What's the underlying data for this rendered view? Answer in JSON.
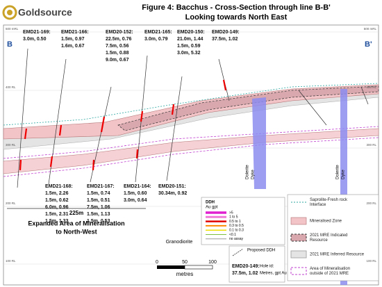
{
  "header": {
    "logo": "Goldsource",
    "title": "Figure 4: Bacchus - Cross-Section through line B-B'",
    "subtitle": "Looking towards North East"
  },
  "section": {
    "left_end": "B",
    "right_end": "B'"
  },
  "elevations_left": [
    "500 mRL",
    "400 RL",
    "300 RL",
    "200 RL",
    "100 RL"
  ],
  "elevations_right": [
    "500 mRL",
    "400 RL",
    "300 RL",
    "200 RL",
    "100 RL"
  ],
  "holes_top": [
    {
      "id": "EMD21-169:",
      "intercepts": [
        "3.0m, 0.50"
      ]
    },
    {
      "id": "EMD21-166:",
      "intercepts": [
        "1.5m, 0.97",
        "1.6m, 0.67"
      ]
    },
    {
      "id": "EMD20-152:",
      "intercepts": [
        "22.5m, 0.76",
        "7.5m, 0.56",
        "1.5m, 0.88",
        "9.0m, 0.67"
      ]
    },
    {
      "id": "EMD21-165:",
      "intercepts": [
        "3.0m, 0.79"
      ]
    },
    {
      "id": "EMD20-150:",
      "intercepts": [
        "21.0m, 1.44",
        "1.5m, 0.59",
        "3.0m, 5.32"
      ]
    },
    {
      "id": "EMD20-149:",
      "intercepts": [
        "37.5m, 1.02"
      ]
    }
  ],
  "holes_bottom": [
    {
      "id": "EMD21-168:",
      "intercepts": [
        "1.5m, 2.26",
        "1.5m, 0.62",
        "6.0m, 0.96",
        "1.5m, 2.31",
        "1.5m, 1.33"
      ]
    },
    {
      "id": "EMD21-167:",
      "intercepts": [
        "1.5m, 0.74",
        "1.5m, 0.51",
        "7.5m, 1.06",
        "1.5m, 1.13",
        "1.5m, 0.53"
      ]
    },
    {
      "id": "EMD21-164:",
      "intercepts": [
        "1.5m, 0.60",
        "3.0m, 0.64"
      ]
    },
    {
      "id": "EMD20-151:",
      "intercepts": [
        "30.34m, 0.92"
      ]
    }
  ],
  "annotations": {
    "distance": "225m",
    "expanded_area": [
      "Expanded Area of Mineralisation",
      "to North-West"
    ],
    "rock": "Granodiorite",
    "dykes": [
      [
        "Dolerite",
        "Dyke"
      ],
      [
        "Dolerite",
        "Dyke"
      ]
    ]
  },
  "ddh_legend": {
    "title": "DDH",
    "unit": "Au gpt",
    "classes": [
      {
        "label": ">5",
        "color": "#e020d0"
      },
      {
        "label": "1 to 5",
        "color": "#f07ad8"
      },
      {
        "label": "0.5 to 1",
        "color": "#e00000"
      },
      {
        "label": "0.3 to 0.5",
        "color": "#ff8c00"
      },
      {
        "label": "0.1 to 0.3",
        "color": "#f0e000"
      },
      {
        "label": "<0.1",
        "color": "#7fbf3f"
      },
      {
        "label": "no assay",
        "color": "#999999"
      }
    ]
  },
  "hole_legend": {
    "proposed": "Proposed DDH",
    "example_id": "EMD20-149:",
    "example_intercept": "37.5m, 1.02",
    "id_label": "Hole id:",
    "intercept_label": "Metres, gpt Au"
  },
  "scale": {
    "ticks": [
      "0",
      "50",
      "100"
    ],
    "unit": "metres"
  },
  "legend": [
    {
      "label": [
        "Saprolite-Fresh rock",
        "Interface"
      ]
    },
    {
      "label": [
        "Mineralised Zone"
      ]
    },
    {
      "label": [
        "2021 MRE Indicated",
        "Resource"
      ]
    },
    {
      "label": [
        "2021 MRE Inferred Resource"
      ]
    },
    {
      "label": [
        "Area of Mineralisation",
        "outside of 2021 MRE"
      ]
    }
  ]
}
